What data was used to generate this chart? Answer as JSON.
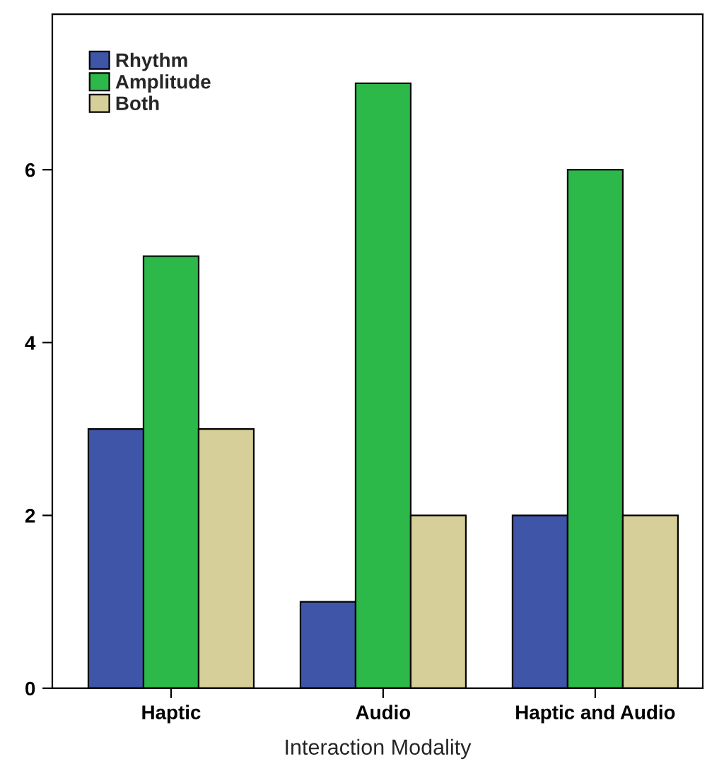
{
  "chart_data": {
    "type": "bar",
    "xlabel": "Interaction Modality",
    "categories": [
      "Haptic",
      "Audio",
      "Haptic and Audio"
    ],
    "series": [
      {
        "name": "Rhythm",
        "color": "#3f55a8",
        "values": [
          3,
          1,
          2
        ]
      },
      {
        "name": "Amplitude",
        "color": "#2db84a",
        "values": [
          5,
          7,
          6
        ]
      },
      {
        "name": "Both",
        "color": "#d6cf9a",
        "values": [
          3,
          2,
          2
        ]
      }
    ],
    "ylim": [
      0,
      7.8
    ],
    "yticks": [
      0,
      2,
      4,
      6
    ],
    "grid": false,
    "legend": "top left"
  }
}
